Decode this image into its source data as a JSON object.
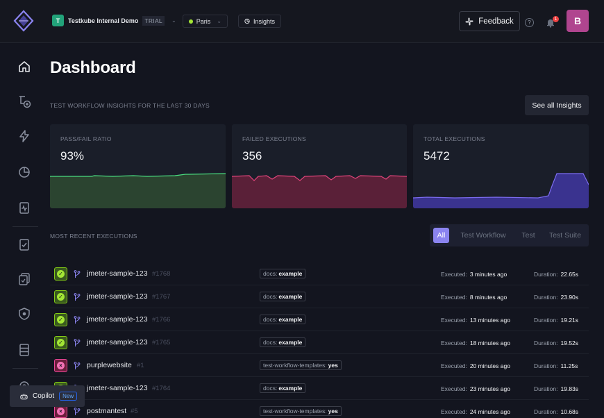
{
  "header": {
    "org_initial": "T",
    "org_name": "Testkube Internal Demo",
    "org_plan": "TRIAL",
    "environment": "Paris",
    "insights_label": "Insights",
    "feedback_label": "Feedback",
    "help_label": "?",
    "notification_count": "1",
    "user_initial": "B"
  },
  "page": {
    "title": "Dashboard",
    "insights_section_label": "TEST WORKFLOW INSIGHTS FOR THE LAST 30 DAYS",
    "see_all_label": "See all Insights",
    "recent_section_label": "MOST RECENT EXECUTIONS"
  },
  "cards": [
    {
      "label": "PASS/FAIL RATIO",
      "value": "93%",
      "color": "#4ade80",
      "fill": "#2b4430"
    },
    {
      "label": "FAILED EXECUTIONS",
      "value": "356",
      "color": "#e0457b",
      "fill": "#5a2038"
    },
    {
      "label": "TOTAL EXECUTIONS",
      "value": "5472",
      "color": "#7c6cf0",
      "fill": "#3a338f"
    }
  ],
  "filters": [
    "All",
    "Test Workflow",
    "Test",
    "Test Suite"
  ],
  "active_filter": "All",
  "executions": [
    {
      "status": "passed",
      "name": "jmeter-sample-123",
      "number": "#1768",
      "label_key": "docs:",
      "label_value": "example",
      "executed_label": "Executed:",
      "executed": "3 minutes ago",
      "duration_label": "Duration:",
      "duration": "22.65s"
    },
    {
      "status": "passed",
      "name": "jmeter-sample-123",
      "number": "#1767",
      "label_key": "docs:",
      "label_value": "example",
      "executed_label": "Executed:",
      "executed": "8 minutes ago",
      "duration_label": "Duration:",
      "duration": "23.90s"
    },
    {
      "status": "passed",
      "name": "jmeter-sample-123",
      "number": "#1766",
      "label_key": "docs:",
      "label_value": "example",
      "executed_label": "Executed:",
      "executed": "13 minutes ago",
      "duration_label": "Duration:",
      "duration": "19.21s"
    },
    {
      "status": "passed",
      "name": "jmeter-sample-123",
      "number": "#1765",
      "label_key": "docs:",
      "label_value": "example",
      "executed_label": "Executed:",
      "executed": "18 minutes ago",
      "duration_label": "Duration:",
      "duration": "19.52s"
    },
    {
      "status": "failed",
      "name": "purplewebsite",
      "number": "#1",
      "label_key": "test-workflow-templates:",
      "label_value": "yes",
      "executed_label": "Executed:",
      "executed": "20 minutes ago",
      "duration_label": "Duration:",
      "duration": "11.25s"
    },
    {
      "status": "passed",
      "name": "jmeter-sample-123",
      "number": "#1764",
      "label_key": "docs:",
      "label_value": "example",
      "executed_label": "Executed:",
      "executed": "23 minutes ago",
      "duration_label": "Duration:",
      "duration": "19.83s"
    },
    {
      "status": "failed",
      "name": "postmantest",
      "number": "#5",
      "label_key": "test-workflow-templates:",
      "label_value": "yes",
      "executed_label": "Executed:",
      "executed": "24 minutes ago",
      "duration_label": "Duration:",
      "duration": "10.68s"
    }
  ],
  "copilot": {
    "label": "Copilot",
    "badge": "New"
  }
}
